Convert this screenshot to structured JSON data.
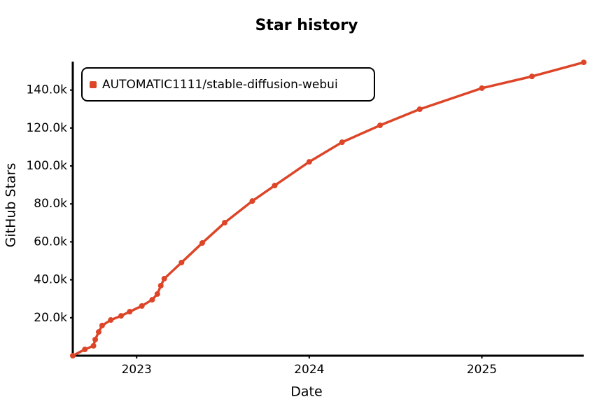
{
  "chart_data": {
    "type": "line",
    "title": "Star history",
    "x_label": "Date",
    "y_label": "GitHub Stars",
    "x": [
      2022.63,
      2022.7,
      2022.75,
      2022.76,
      2022.78,
      2022.8,
      2022.85,
      2022.91,
      2022.96,
      2023.03,
      2023.09,
      2023.12,
      2023.14,
      2023.16,
      2023.26,
      2023.38,
      2023.51,
      2023.67,
      2023.8,
      2024.0,
      2024.19,
      2024.41,
      2024.64,
      2025.0,
      2025.29,
      2025.59
    ],
    "series": [
      {
        "name": "AUTOMATIC1111/stable-diffusion-webui",
        "color": "#dd4528",
        "values": [
          0,
          3300,
          5200,
          8500,
          12500,
          15900,
          18800,
          21000,
          23200,
          26200,
          29500,
          32500,
          36900,
          40600,
          49100,
          59400,
          70100,
          81500,
          89700,
          102200,
          112500,
          121400,
          129900,
          141000,
          147200,
          154600
        ]
      }
    ],
    "xlim": [
      2022.63,
      2025.59
    ],
    "xticks": [
      2023,
      2024,
      2025
    ],
    "ylim": [
      0,
      155000
    ],
    "yticks": [
      {
        "value": 20000,
        "label": "20.0k"
      },
      {
        "value": 40000,
        "label": "40.0k"
      },
      {
        "value": 60000,
        "label": "60.0k"
      },
      {
        "value": 80000,
        "label": "80.0k"
      },
      {
        "value": 100000,
        "label": "100.0k"
      },
      {
        "value": 120000,
        "label": "120.0k"
      },
      {
        "value": 140000,
        "label": "140.0k"
      }
    ],
    "grid": false,
    "legend": "top-left"
  }
}
